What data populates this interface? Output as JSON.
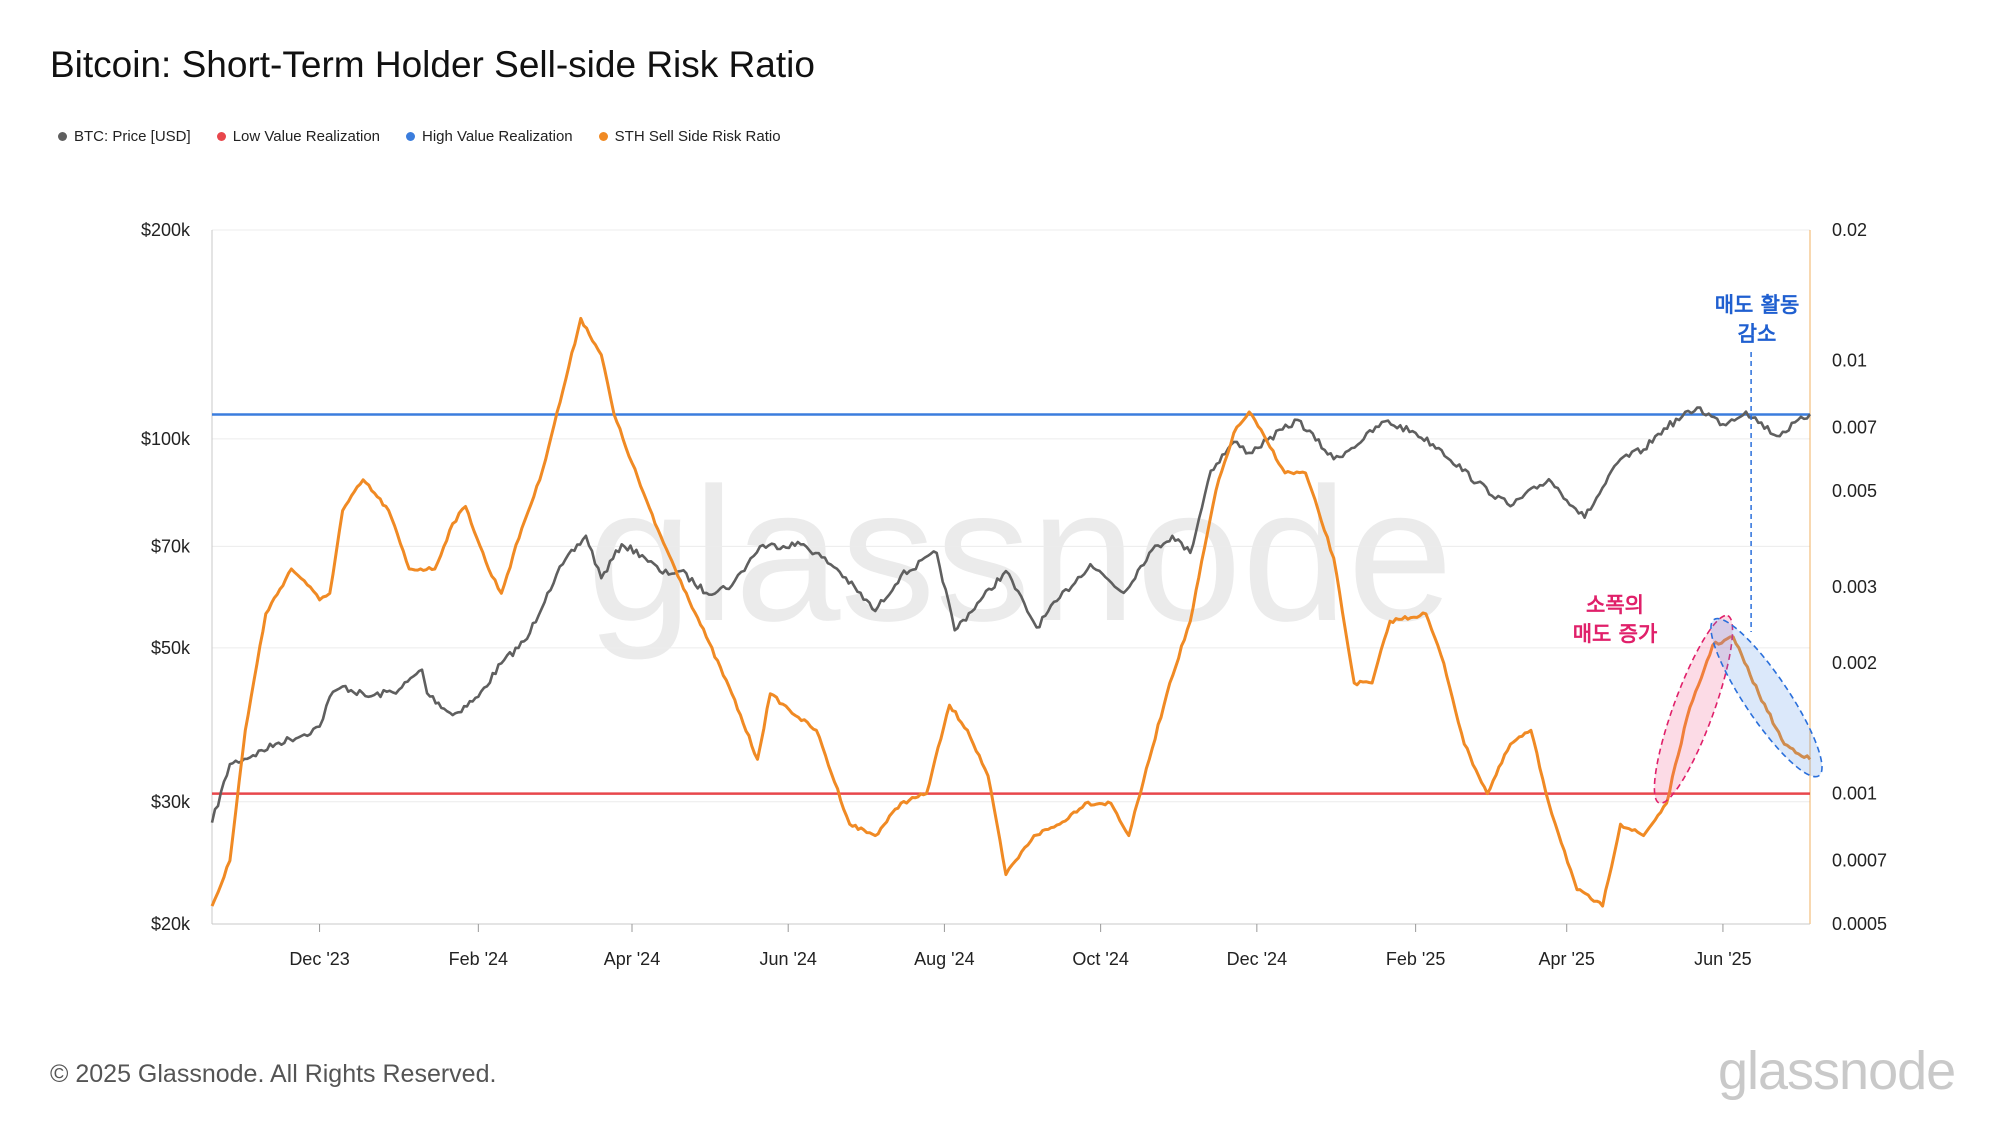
{
  "title": "Bitcoin: Short-Term Holder Sell-side Risk Ratio",
  "footer": "© 2025 Glassnode. All Rights Reserved.",
  "brand": "glassnode",
  "watermark": "glassnode",
  "legend": [
    {
      "label": "BTC: Price [USD]",
      "color": "#5f5f5f"
    },
    {
      "label": "Low Value Realization",
      "color": "#e8474c"
    },
    {
      "label": "High Value Realization",
      "color": "#3b7ddd"
    },
    {
      "label": "STH Sell Side Risk Ratio",
      "color": "#f08a24"
    }
  ],
  "annotations": {
    "decrease": [
      "매도 활동",
      "감소"
    ],
    "increase": [
      "소폭의",
      "매도 증가"
    ]
  },
  "chart_data": {
    "type": "line",
    "title": "Bitcoin: Short-Term Holder Sell-side Risk Ratio",
    "x_range": [
      "2023-10-20",
      "2025-07-05"
    ],
    "x_ticks": [
      {
        "label": "Dec '23",
        "date": "2023-12-01"
      },
      {
        "label": "Feb '24",
        "date": "2024-02-01"
      },
      {
        "label": "Apr '24",
        "date": "2024-04-01"
      },
      {
        "label": "Jun '24",
        "date": "2024-06-01"
      },
      {
        "label": "Aug '24",
        "date": "2024-08-01"
      },
      {
        "label": "Oct '24",
        "date": "2024-10-01"
      },
      {
        "label": "Dec '24",
        "date": "2024-12-01"
      },
      {
        "label": "Feb '25",
        "date": "2025-02-01"
      },
      {
        "label": "Apr '25",
        "date": "2025-04-01"
      },
      {
        "label": "Jun '25",
        "date": "2025-06-01"
      }
    ],
    "y_left": {
      "scale": "log",
      "range": [
        20000,
        200000
      ],
      "ticks": [
        {
          "label": "$200k",
          "value": 200000
        },
        {
          "label": "$100k",
          "value": 100000
        },
        {
          "label": "$70k",
          "value": 70000
        },
        {
          "label": "$50k",
          "value": 50000
        },
        {
          "label": "$30k",
          "value": 30000
        },
        {
          "label": "$20k",
          "value": 20000
        }
      ]
    },
    "y_right": {
      "scale": "log",
      "range": [
        0.0005,
        0.02
      ],
      "ticks": [
        {
          "label": "0.02",
          "value": 0.02
        },
        {
          "label": "0.01",
          "value": 0.01
        },
        {
          "label": "0.007",
          "value": 0.007
        },
        {
          "label": "0.005",
          "value": 0.005
        },
        {
          "label": "0.003",
          "value": 0.003
        },
        {
          "label": "0.002",
          "value": 0.002
        },
        {
          "label": "0.001",
          "value": 0.001
        },
        {
          "label": "0.0007",
          "value": 0.0007
        },
        {
          "label": "0.0005",
          "value": 0.0005
        }
      ]
    },
    "thresholds": [
      {
        "name": "High Value Realization",
        "axis": "right",
        "value": 0.0075,
        "color": "#3b7ddd"
      },
      {
        "name": "Low Value Realization",
        "axis": "right",
        "value": 0.001,
        "color": "#e8474c"
      }
    ],
    "series": [
      {
        "name": "BTC: Price [USD]",
        "axis": "left",
        "color": "#5f5f5f",
        "points": [
          [
            "2023-10-20",
            28000
          ],
          [
            "2023-10-27",
            34000
          ],
          [
            "2023-11-05",
            35000
          ],
          [
            "2023-11-15",
            36500
          ],
          [
            "2023-11-25",
            37500
          ],
          [
            "2023-12-01",
            38500
          ],
          [
            "2023-12-05",
            42500
          ],
          [
            "2023-12-10",
            44000
          ],
          [
            "2023-12-20",
            42500
          ],
          [
            "2024-01-01",
            43500
          ],
          [
            "2024-01-10",
            46500
          ],
          [
            "2024-01-12",
            43000
          ],
          [
            "2024-01-22",
            40000
          ],
          [
            "2024-02-01",
            42500
          ],
          [
            "2024-02-10",
            47500
          ],
          [
            "2024-02-20",
            51500
          ],
          [
            "2024-02-28",
            60000
          ],
          [
            "2024-03-05",
            66000
          ],
          [
            "2024-03-14",
            72500
          ],
          [
            "2024-03-20",
            63000
          ],
          [
            "2024-03-28",
            70500
          ],
          [
            "2024-04-05",
            68000
          ],
          [
            "2024-04-13",
            64000
          ],
          [
            "2024-04-20",
            64500
          ],
          [
            "2024-04-30",
            60000
          ],
          [
            "2024-05-10",
            61500
          ],
          [
            "2024-05-21",
            70000
          ],
          [
            "2024-06-07",
            70500
          ],
          [
            "2024-06-20",
            65000
          ],
          [
            "2024-07-05",
            56500
          ],
          [
            "2024-07-15",
            63500
          ],
          [
            "2024-07-29",
            68500
          ],
          [
            "2024-08-05",
            53000
          ],
          [
            "2024-08-15",
            58500
          ],
          [
            "2024-08-25",
            64500
          ],
          [
            "2024-09-06",
            53500
          ],
          [
            "2024-09-15",
            59000
          ],
          [
            "2024-09-27",
            66000
          ],
          [
            "2024-10-10",
            60000
          ],
          [
            "2024-10-20",
            68500
          ],
          [
            "2024-10-29",
            72500
          ],
          [
            "2024-11-05",
            68500
          ],
          [
            "2024-11-13",
            90000
          ],
          [
            "2024-11-22",
            99000
          ],
          [
            "2024-11-28",
            95500
          ],
          [
            "2024-12-05",
            99500
          ],
          [
            "2024-12-17",
            106500
          ],
          [
            "2024-12-31",
            93500
          ],
          [
            "2025-01-07",
            97000
          ],
          [
            "2025-01-20",
            106000
          ],
          [
            "2025-02-01",
            102000
          ],
          [
            "2025-02-10",
            97000
          ],
          [
            "2025-02-25",
            86500
          ],
          [
            "2025-03-10",
            80000
          ],
          [
            "2025-03-25",
            87500
          ],
          [
            "2025-04-08",
            77000
          ],
          [
            "2025-04-22",
            93500
          ],
          [
            "2025-05-01",
            96500
          ],
          [
            "2025-05-09",
            103500
          ],
          [
            "2025-05-22",
            111000
          ],
          [
            "2025-06-01",
            105000
          ],
          [
            "2025-06-10",
            109500
          ],
          [
            "2025-06-22",
            101000
          ],
          [
            "2025-07-05",
            108500
          ]
        ]
      },
      {
        "name": "STH Sell Side Risk Ratio",
        "axis": "right",
        "color": "#f08a24",
        "points": [
          [
            "2023-10-20",
            0.00055
          ],
          [
            "2023-10-27",
            0.0007
          ],
          [
            "2023-11-02",
            0.0014
          ],
          [
            "2023-11-10",
            0.0026
          ],
          [
            "2023-11-20",
            0.0033
          ],
          [
            "2023-11-25",
            0.0031
          ],
          [
            "2023-12-01",
            0.0028
          ],
          [
            "2023-12-05",
            0.0029
          ],
          [
            "2023-12-10",
            0.0045
          ],
          [
            "2023-12-18",
            0.0053
          ],
          [
            "2023-12-28",
            0.0045
          ],
          [
            "2024-01-05",
            0.0033
          ],
          [
            "2024-01-15",
            0.0033
          ],
          [
            "2024-01-22",
            0.0042
          ],
          [
            "2024-01-27",
            0.0046
          ],
          [
            "2024-02-05",
            0.0033
          ],
          [
            "2024-02-10",
            0.0029
          ],
          [
            "2024-02-18",
            0.0041
          ],
          [
            "2024-02-25",
            0.0053
          ],
          [
            "2024-03-05",
            0.0085
          ],
          [
            "2024-03-12",
            0.0125
          ],
          [
            "2024-03-20",
            0.0103
          ],
          [
            "2024-03-25",
            0.0075
          ],
          [
            "2024-04-01",
            0.0058
          ],
          [
            "2024-04-10",
            0.0042
          ],
          [
            "2024-04-20",
            0.0031
          ],
          [
            "2024-04-30",
            0.0023
          ],
          [
            "2024-05-10",
            0.0017
          ],
          [
            "2024-05-20",
            0.0012
          ],
          [
            "2024-05-25",
            0.0017
          ],
          [
            "2024-06-05",
            0.0015
          ],
          [
            "2024-06-12",
            0.0014
          ],
          [
            "2024-06-25",
            0.00085
          ],
          [
            "2024-07-05",
            0.0008
          ],
          [
            "2024-07-15",
            0.00095
          ],
          [
            "2024-07-25",
            0.001
          ],
          [
            "2024-08-03",
            0.0016
          ],
          [
            "2024-08-10",
            0.0014
          ],
          [
            "2024-08-18",
            0.0011
          ],
          [
            "2024-08-25",
            0.00065
          ],
          [
            "2024-09-05",
            0.0008
          ],
          [
            "2024-09-15",
            0.00085
          ],
          [
            "2024-09-25",
            0.00095
          ],
          [
            "2024-10-05",
            0.00095
          ],
          [
            "2024-10-12",
            0.0008
          ],
          [
            "2024-10-20",
            0.0012
          ],
          [
            "2024-10-28",
            0.0018
          ],
          [
            "2024-11-05",
            0.0025
          ],
          [
            "2024-11-15",
            0.005
          ],
          [
            "2024-11-22",
            0.0068
          ],
          [
            "2024-11-28",
            0.0076
          ],
          [
            "2024-12-05",
            0.0065
          ],
          [
            "2024-12-12",
            0.0055
          ],
          [
            "2024-12-20",
            0.0055
          ],
          [
            "2024-12-31",
            0.0035
          ],
          [
            "2025-01-08",
            0.0018
          ],
          [
            "2025-01-15",
            0.0018
          ],
          [
            "2025-01-22",
            0.0025
          ],
          [
            "2025-02-05",
            0.0026
          ],
          [
            "2025-02-12",
            0.002
          ],
          [
            "2025-02-20",
            0.0013
          ],
          [
            "2025-03-01",
            0.001
          ],
          [
            "2025-03-10",
            0.0013
          ],
          [
            "2025-03-18",
            0.0014
          ],
          [
            "2025-03-25",
            0.00095
          ],
          [
            "2025-04-05",
            0.0006
          ],
          [
            "2025-04-15",
            0.00055
          ],
          [
            "2025-04-22",
            0.00085
          ],
          [
            "2025-05-01",
            0.0008
          ],
          [
            "2025-05-10",
            0.00095
          ],
          [
            "2025-05-18",
            0.0015
          ],
          [
            "2025-05-28",
            0.0022
          ],
          [
            "2025-06-05",
            0.0023
          ],
          [
            "2025-06-15",
            0.0017
          ],
          [
            "2025-06-25",
            0.0013
          ],
          [
            "2025-07-05",
            0.0012
          ]
        ]
      }
    ]
  }
}
